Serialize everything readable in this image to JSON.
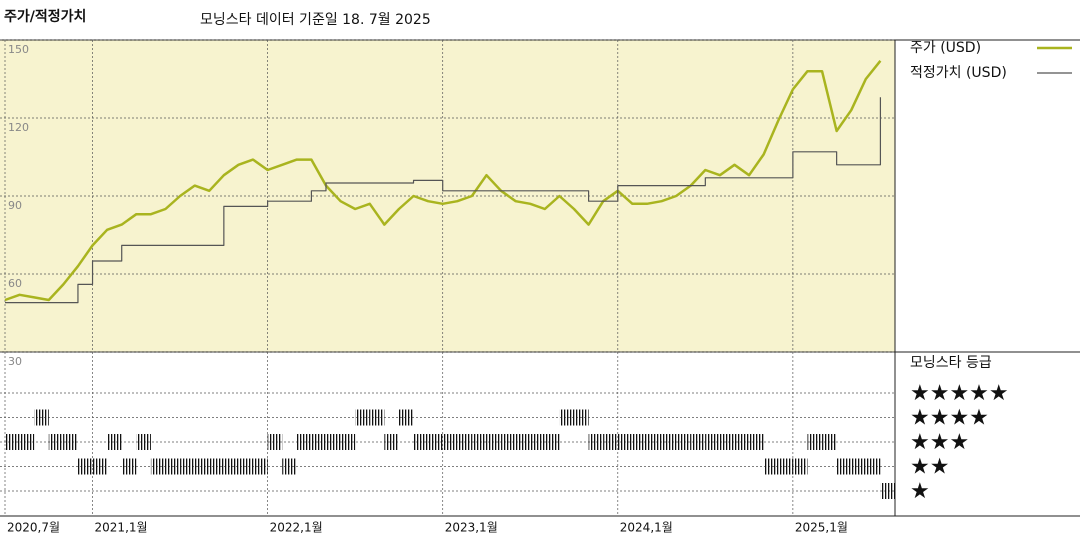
{
  "chart_data": [
    {
      "type": "line",
      "title": "주가/적정가치",
      "subtitle": "모닝스타 데이터 기준일 18. 7월 2025",
      "x": [
        "2020-07",
        "2020-08",
        "2020-09",
        "2020-10",
        "2020-11",
        "2020-12",
        "2021-01",
        "2021-02",
        "2021-03",
        "2021-04",
        "2021-05",
        "2021-06",
        "2021-07",
        "2021-08",
        "2021-09",
        "2021-10",
        "2021-11",
        "2021-12",
        "2022-01",
        "2022-02",
        "2022-03",
        "2022-04",
        "2022-05",
        "2022-06",
        "2022-07",
        "2022-08",
        "2022-09",
        "2022-10",
        "2022-11",
        "2022-12",
        "2023-01",
        "2023-02",
        "2023-03",
        "2023-04",
        "2023-05",
        "2023-06",
        "2023-07",
        "2023-08",
        "2023-09",
        "2023-10",
        "2023-11",
        "2023-12",
        "2024-01",
        "2024-02",
        "2024-03",
        "2024-04",
        "2024-05",
        "2024-06",
        "2024-07",
        "2024-08",
        "2024-09",
        "2024-10",
        "2024-11",
        "2024-12",
        "2025-01",
        "2025-02",
        "2025-03",
        "2025-04",
        "2025-05",
        "2025-06",
        "2025-07"
      ],
      "series": [
        {
          "name": "주가 (USD)",
          "color": "#a9b41f",
          "values": [
            50,
            52,
            51,
            50,
            56,
            63,
            71,
            77,
            79,
            83,
            83,
            85,
            90,
            94,
            92,
            98,
            102,
            104,
            100,
            102,
            104,
            104,
            94,
            88,
            85,
            87,
            79,
            85,
            90,
            88,
            87,
            88,
            90,
            98,
            92,
            88,
            87,
            85,
            90,
            85,
            79,
            88,
            92,
            87,
            87,
            88,
            90,
            94,
            100,
            98,
            102,
            98,
            106,
            119,
            131,
            138,
            138,
            115,
            123,
            135,
            142
          ]
        },
        {
          "name": "적정가치 (USD)",
          "color": "#555555",
          "step": true,
          "values": [
            49,
            49,
            49,
            49,
            49,
            56,
            65,
            65,
            71,
            71,
            71,
            71,
            71,
            71,
            71,
            86,
            86,
            86,
            88,
            88,
            88,
            92,
            95,
            95,
            95,
            95,
            95,
            95,
            96,
            96,
            92,
            92,
            92,
            92,
            92,
            92,
            92,
            92,
            92,
            92,
            88,
            88,
            94,
            94,
            94,
            94,
            94,
            94,
            97,
            97,
            97,
            97,
            97,
            97,
            107,
            107,
            107,
            102,
            102,
            102,
            128
          ]
        }
      ],
      "xlim": [
        "2020-07",
        "2025-08"
      ],
      "xticks": [
        {
          "value": "2020-07",
          "label": "2020,7월"
        },
        {
          "value": "2021-01",
          "label": "2021,1월"
        },
        {
          "value": "2022-01",
          "label": "2022,1월"
        },
        {
          "value": "2023-01",
          "label": "2023,1월"
        },
        {
          "value": "2024-01",
          "label": "2024,1월"
        },
        {
          "value": "2025-01",
          "label": "2025,1월"
        }
      ],
      "ylim": [
        30,
        150
      ],
      "yticks": [
        30,
        60,
        90,
        120,
        150
      ],
      "grid": true
    },
    {
      "type": "rating",
      "title": "모닝스타 등급",
      "x": [
        "2020-07",
        "2020-08",
        "2020-09",
        "2020-10",
        "2020-11",
        "2020-12",
        "2021-01",
        "2021-02",
        "2021-03",
        "2021-04",
        "2021-05",
        "2021-06",
        "2021-07",
        "2021-08",
        "2021-09",
        "2021-10",
        "2021-11",
        "2021-12",
        "2022-01",
        "2022-02",
        "2022-03",
        "2022-04",
        "2022-05",
        "2022-06",
        "2022-07",
        "2022-08",
        "2022-09",
        "2022-10",
        "2022-11",
        "2022-12",
        "2023-01",
        "2023-02",
        "2023-03",
        "2023-04",
        "2023-05",
        "2023-06",
        "2023-07",
        "2023-08",
        "2023-09",
        "2023-10",
        "2023-11",
        "2023-12",
        "2024-01",
        "2024-02",
        "2024-03",
        "2024-04",
        "2024-05",
        "2024-06",
        "2024-07",
        "2024-08",
        "2024-09",
        "2024-10",
        "2024-11",
        "2024-12",
        "2025-01",
        "2025-02",
        "2025-03",
        "2025-04",
        "2025-05",
        "2025-06",
        "2025-07"
      ],
      "values": [
        3,
        3,
        4,
        3,
        3,
        2,
        2,
        3,
        2,
        3,
        2,
        2,
        2,
        2,
        2,
        2,
        2,
        2,
        3,
        2,
        3,
        3,
        3,
        3,
        4,
        4,
        3,
        4,
        3,
        3,
        3,
        3,
        3,
        3,
        3,
        3,
        3,
        3,
        4,
        4,
        3,
        3,
        3,
        3,
        3,
        3,
        3,
        3,
        3,
        3,
        3,
        3,
        2,
        2,
        2,
        3,
        3,
        2,
        2,
        2,
        1
      ],
      "levels": [
        5,
        4,
        3,
        2,
        1
      ],
      "level_labels": [
        "★★★★★",
        "★★★★",
        "★★★",
        "★★",
        "★"
      ]
    }
  ]
}
